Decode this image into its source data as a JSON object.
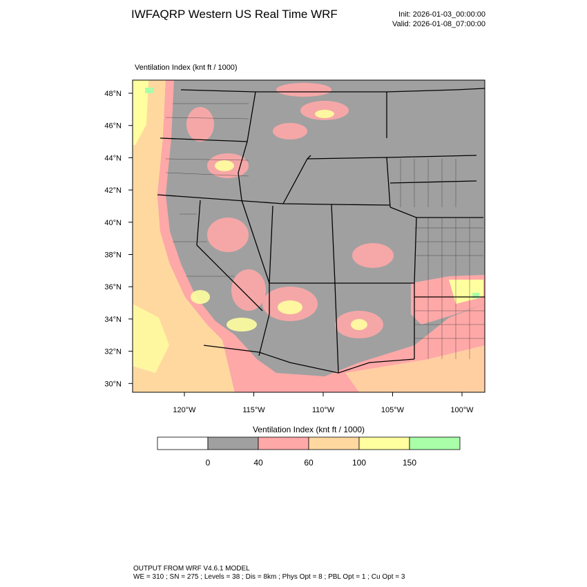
{
  "header": {
    "title": "IWFAQRP Western US Real Time WRF",
    "init": "Init: 2026-01-03_00:00:00",
    "valid": "Valid: 2026-01-08_07:00:00"
  },
  "map": {
    "subtitle": "Ventilation Index   (knt ft / 1000)",
    "lat_labels": [
      "48°N",
      "46°N",
      "44°N",
      "42°N",
      "40°N",
      "38°N",
      "36°N",
      "34°N",
      "32°N",
      "30°N"
    ],
    "lon_labels": [
      "120°W",
      "115°W",
      "110°W",
      "105°W",
      "100°W"
    ]
  },
  "colorbar": {
    "title": "Ventilation Index   (knt ft / 1000)",
    "labels": [
      "0",
      "40",
      "60",
      "100",
      "150"
    ],
    "colors": [
      "#ffffff",
      "#a0a0a0",
      "#ffa8a8",
      "#ffd8a0",
      "#ffffa0",
      "#a8ffa8"
    ]
  },
  "footer": {
    "model": "OUTPUT FROM WRF V4.6.1 MODEL",
    "details": "WE = 310 ; SN = 275 ; Levels = 38 ; Dis = 8km ; Phys Opt = 8 ; PBL Opt = 1 ; Cu Opt = 3"
  }
}
